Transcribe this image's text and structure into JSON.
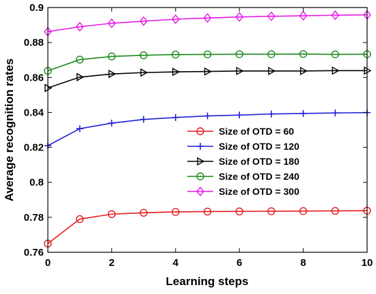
{
  "chart_data": {
    "type": "line",
    "title": "",
    "xlabel": "Learning steps",
    "ylabel": "Average recognition rates",
    "xlim": [
      0,
      10
    ],
    "ylim": [
      0.76,
      0.9
    ],
    "x_ticks": [
      0,
      2,
      4,
      6,
      8,
      10
    ],
    "y_ticks": [
      0.76,
      0.78,
      0.8,
      0.82,
      0.84,
      0.86,
      0.88,
      0.9
    ],
    "x_tick_labels": [
      "0",
      "2",
      "4",
      "6",
      "8",
      "10"
    ],
    "y_tick_labels": [
      "0.76",
      "0.78",
      "0.8",
      "0.82",
      "0.84",
      "0.86",
      "0.88",
      "0.9"
    ],
    "grid": false,
    "legend_position": "center-right",
    "x": [
      0,
      1,
      2,
      3,
      4,
      5,
      6,
      7,
      8,
      9,
      10
    ],
    "series": [
      {
        "name": "Size of OTD = 60",
        "color": "#e41a1c",
        "marker": "circle",
        "values": [
          0.765,
          0.779,
          0.7818,
          0.7826,
          0.7831,
          0.7833,
          0.7834,
          0.7835,
          0.7836,
          0.7837,
          0.7838
        ]
      },
      {
        "name": "Size of OTD = 120",
        "color": "#1f1fd6",
        "marker": "plus",
        "values": [
          0.821,
          0.8307,
          0.8339,
          0.836,
          0.8371,
          0.838,
          0.8385,
          0.8391,
          0.8394,
          0.8397,
          0.8399
        ]
      },
      {
        "name": "Size of OTD = 180",
        "color": "#000000",
        "marker": "triangle-right",
        "values": [
          0.854,
          0.8602,
          0.862,
          0.8628,
          0.8632,
          0.8634,
          0.8637,
          0.8637,
          0.8637,
          0.8639,
          0.8639
        ]
      },
      {
        "name": "Size of OTD = 240",
        "color": "#1a8a1a",
        "marker": "circle",
        "values": [
          0.8638,
          0.8702,
          0.872,
          0.8727,
          0.8731,
          0.8732,
          0.8733,
          0.8733,
          0.8734,
          0.8732,
          0.8733
        ]
      },
      {
        "name": "Size of OTD = 300",
        "color": "#e619e6",
        "marker": "diamond",
        "values": [
          0.8862,
          0.889,
          0.891,
          0.8922,
          0.8933,
          0.894,
          0.8946,
          0.895,
          0.8953,
          0.8956,
          0.8958
        ]
      }
    ]
  }
}
